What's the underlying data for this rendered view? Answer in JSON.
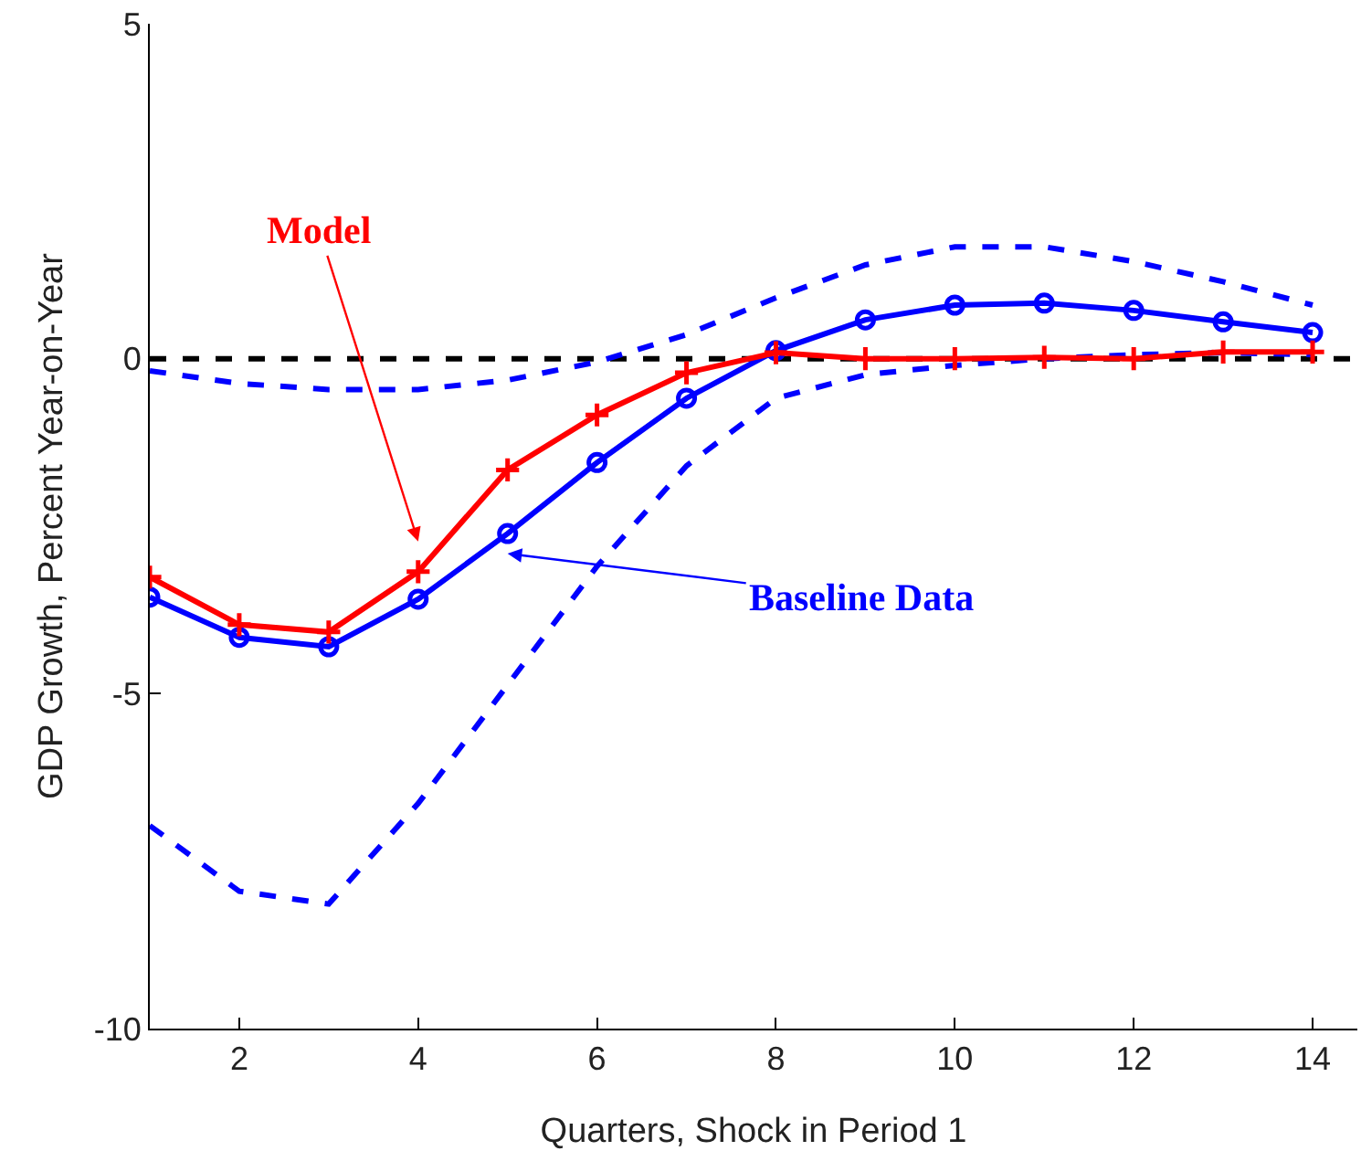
{
  "chart_data": {
    "type": "line",
    "xlabel": "Quarters, Shock in Period 1",
    "ylabel": "GDP Growth, Percent Year-on-Year",
    "x": [
      1,
      2,
      3,
      4,
      5,
      6,
      7,
      8,
      9,
      10,
      11,
      12,
      13,
      14
    ],
    "series": [
      {
        "name": "Model",
        "color": "#ff0000",
        "marker": "cross",
        "line_style": "solid",
        "values": [
          -3.26,
          -3.97,
          -4.08,
          -3.18,
          -1.66,
          -0.84,
          -0.21,
          0.09,
          0.0,
          0.0,
          0.02,
          0.0,
          0.1,
          0.1
        ]
      },
      {
        "name": "Baseline Data",
        "color": "#0000ff",
        "marker": "circle",
        "line_style": "solid",
        "values": [
          -3.56,
          -4.16,
          -4.3,
          -3.59,
          -2.61,
          -1.55,
          -0.59,
          0.12,
          0.58,
          0.8,
          0.83,
          0.72,
          0.55,
          0.39
        ]
      },
      {
        "color": "#0000ff",
        "marker": "none",
        "line_style": "dashed",
        "values": [
          -6.97,
          -7.95,
          -8.14,
          -6.64,
          -4.87,
          -3.1,
          -1.6,
          -0.59,
          -0.24,
          -0.1,
          0.0,
          0.06,
          0.09,
          0.06
        ]
      },
      {
        "color": "#0000ff",
        "marker": "none",
        "line_style": "dashed",
        "values": [
          -0.18,
          -0.37,
          -0.46,
          -0.46,
          -0.32,
          -0.05,
          0.36,
          0.91,
          1.4,
          1.67,
          1.67,
          1.45,
          1.15,
          0.8
        ]
      }
    ],
    "ref_lines": [
      {
        "axis": "y",
        "value": 0,
        "color": "#000000",
        "line_style": "dashed"
      }
    ],
    "xlim": [
      1,
      14.5
    ],
    "xticks": [
      2,
      4,
      6,
      8,
      10,
      12,
      14
    ],
    "ylim": [
      -10,
      5
    ],
    "yticks": [
      -10,
      -5,
      0,
      5
    ],
    "grid": false,
    "legend": false
  }
}
